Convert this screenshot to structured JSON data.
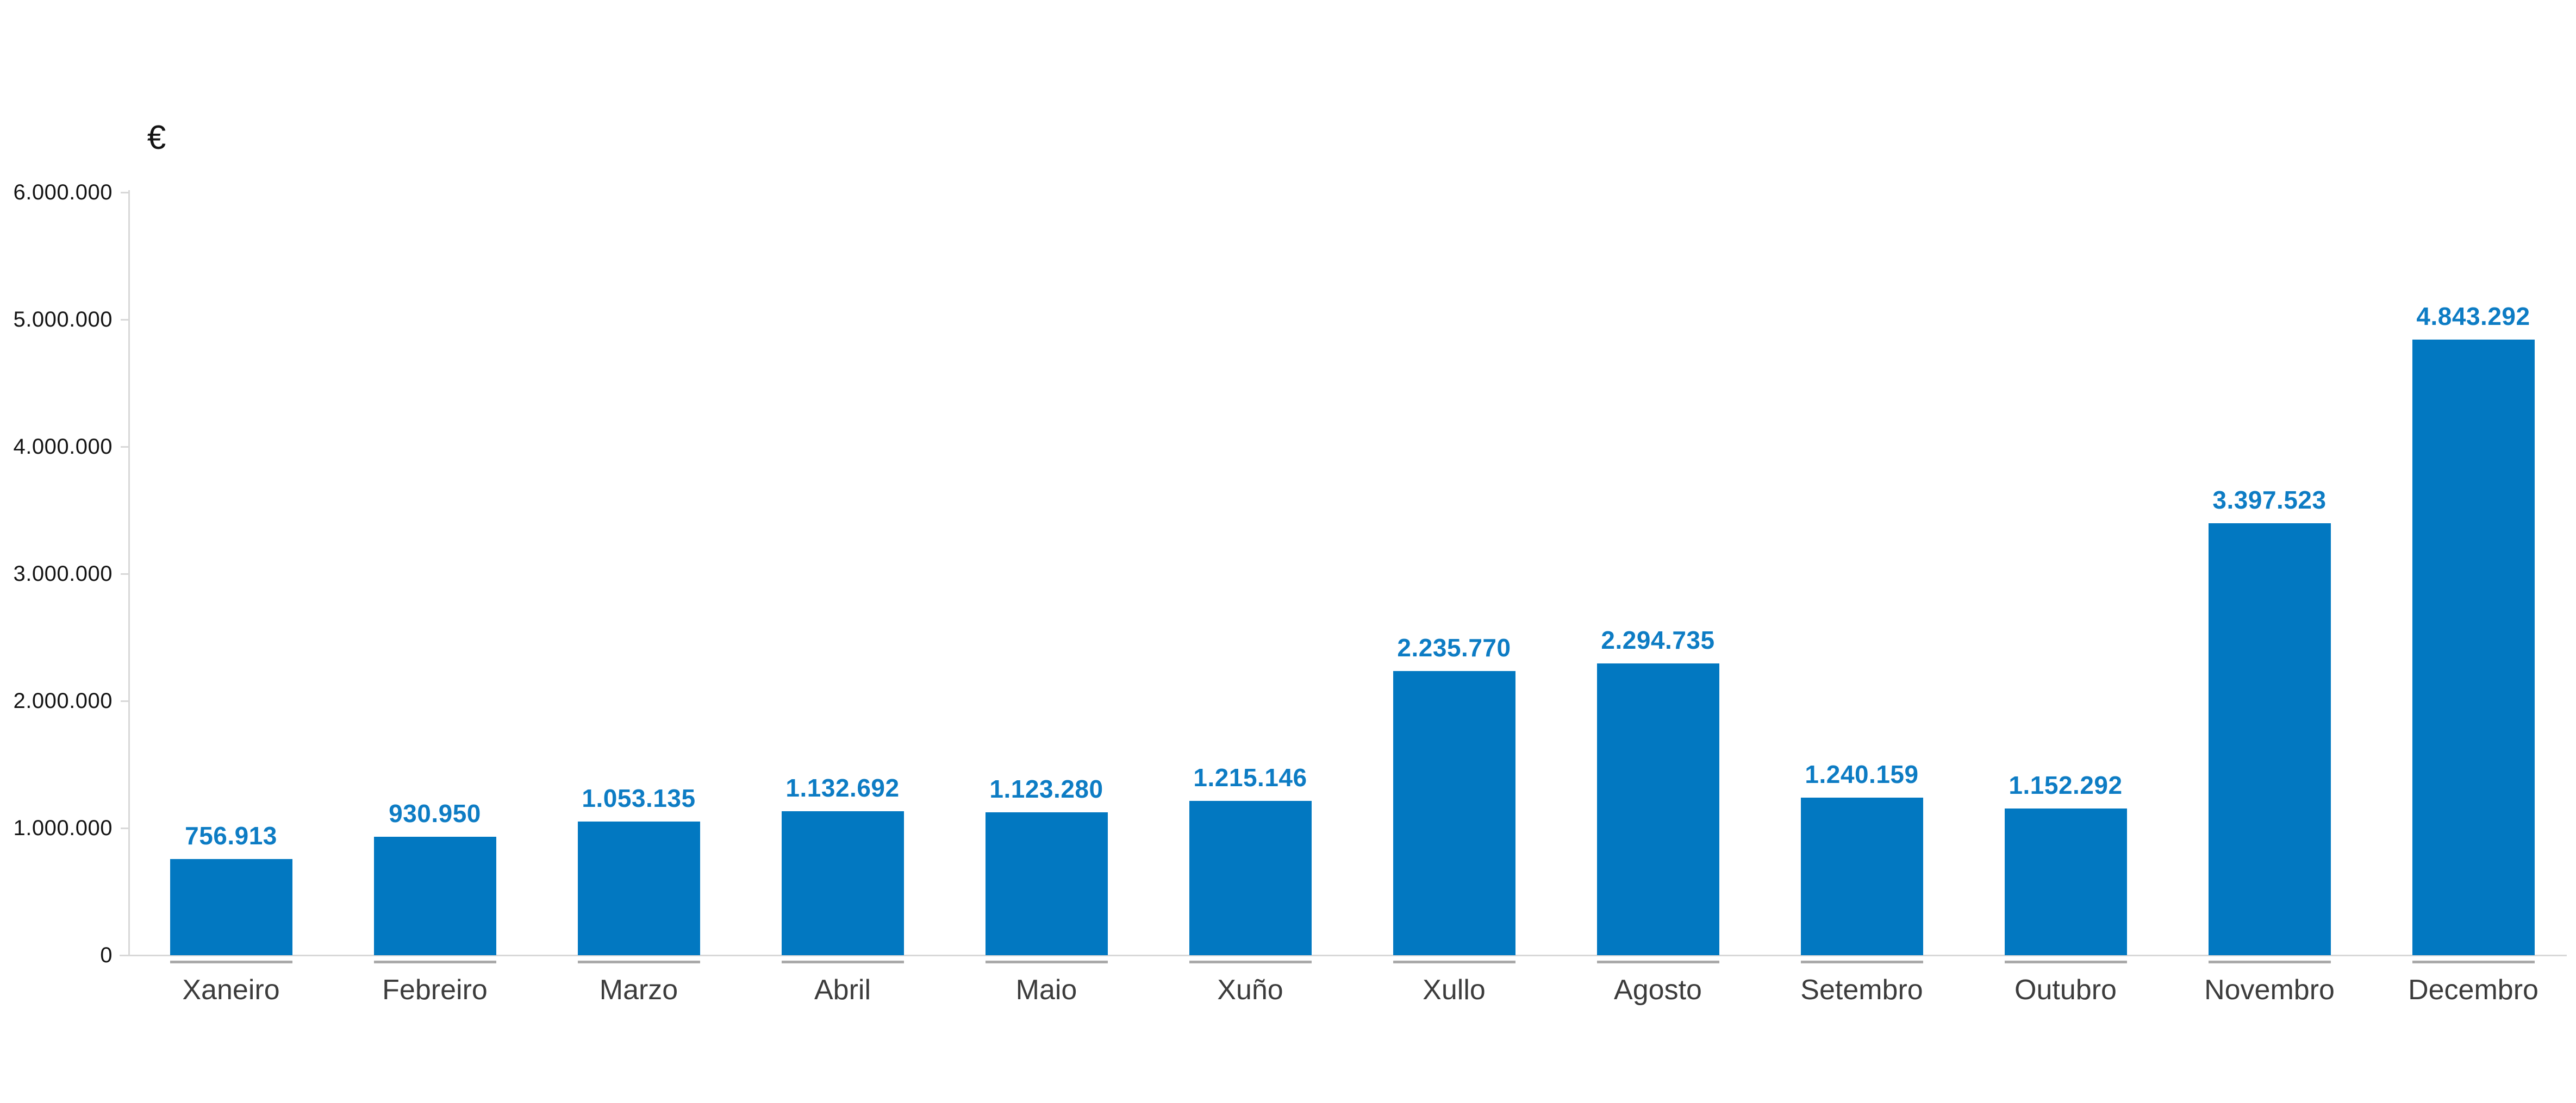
{
  "chart_data": {
    "type": "bar",
    "title": "",
    "xlabel": "",
    "ylabel": "€",
    "ylim": [
      0,
      6000000
    ],
    "grid": "off",
    "legend": "none",
    "categories": [
      "Xaneiro",
      "Febreiro",
      "Marzo",
      "Abril",
      "Maio",
      "Xuño",
      "Xullo",
      "Agosto",
      "Setembro",
      "Outubro",
      "Novembro",
      "Decembro"
    ],
    "values": [
      756913,
      930950,
      1053135,
      1132692,
      1123280,
      1215146,
      2235770,
      2294735,
      1240159,
      1152292,
      3397523,
      4843292
    ],
    "value_labels": [
      "756.913",
      "930.950",
      "1.053.135",
      "1.132.692",
      "1.123.280",
      "1.215.146",
      "2.235.770",
      "2.294.735",
      "1.240.159",
      "1.152.292",
      "3.397.523",
      "4.843.292"
    ],
    "y_tick_labels": [
      "6.000.000",
      "5.000.000",
      "4.000.000",
      "3.000.000",
      "2.000.000",
      "1.000.000",
      "0"
    ],
    "y_tick_values": [
      6000000,
      5000000,
      4000000,
      3000000,
      2000000,
      1000000,
      0
    ],
    "colors": {
      "bar": "#0278C1",
      "value_label": "#0D7CC4",
      "axis": "#D8D8D8",
      "category_tick": "#A9A9A9",
      "y_tick_label": "#141414",
      "category_label": "#3C3C3C",
      "unit_label": "#141414",
      "background": "#FFFFFF"
    }
  }
}
